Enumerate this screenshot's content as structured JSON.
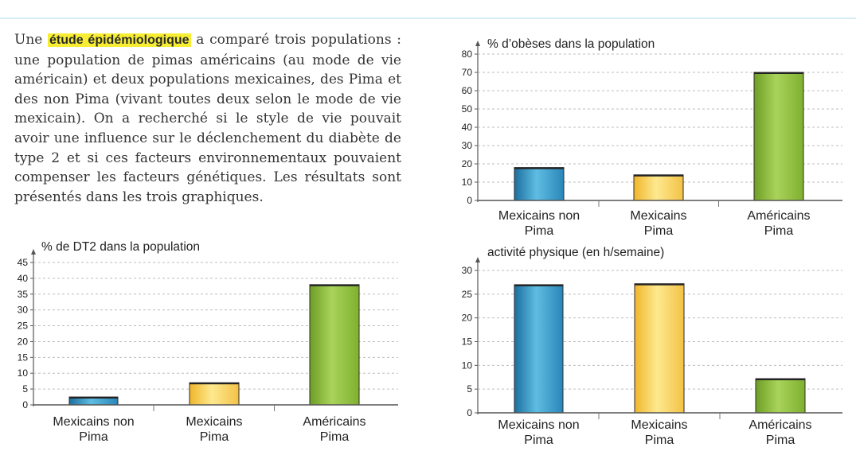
{
  "text": {
    "before": "Une ",
    "highlight": "étude épidémiologique",
    "after": " a comparé trois populations : une population de pimas américains (au mode de vie américain) et deux populations mexicaines, des Pima et des non Pima (vivant toutes deux selon le mode de vie mexicain). On a recherché si le style de vie pouvait avoir une influence sur le déclenchement du diabète de type 2 et si ces facteurs environnementaux pouvaient compenser les facteurs génétiques. Les résultats sont",
    "last_line": "présentés dans les trois graphiques."
  },
  "colors": {
    "blue": "#3399c6",
    "yellow": "#f7cb4a",
    "green": "#8fc23a",
    "grid": "#bdbdbd",
    "axis": "#555555"
  },
  "chart_data": [
    {
      "id": "obesity",
      "type": "bar",
      "title": "% d’obèses dans la population",
      "categories": [
        [
          "Mexicains non",
          "Pima"
        ],
        [
          "Mexicains",
          "Pima"
        ],
        [
          "Américains",
          "Pima"
        ]
      ],
      "values": [
        18,
        14,
        70
      ],
      "ylim": [
        0,
        80
      ],
      "ticks": [
        0,
        10,
        20,
        30,
        40,
        50,
        60,
        70,
        80
      ],
      "grid": true
    },
    {
      "id": "dt2",
      "type": "bar",
      "title": "% de DT2 dans la population",
      "categories": [
        [
          "Mexicains non",
          "Pima"
        ],
        [
          "Mexicains",
          "Pima"
        ],
        [
          "Américains",
          "Pima"
        ]
      ],
      "values": [
        2.5,
        7,
        38
      ],
      "ylim": [
        0,
        45
      ],
      "ticks": [
        0,
        5,
        10,
        15,
        20,
        25,
        30,
        35,
        40,
        45
      ],
      "grid": true
    },
    {
      "id": "activity",
      "type": "bar",
      "title": "activité physique (en h/semaine)",
      "categories": [
        [
          "Mexicains non",
          "Pima"
        ],
        [
          "Mexicains",
          "Pima"
        ],
        [
          "Américains",
          "Pima"
        ]
      ],
      "values": [
        27,
        27.2,
        7.2
      ],
      "ylim": [
        0,
        30
      ],
      "ticks": [
        0,
        5,
        10,
        15,
        20,
        25,
        30
      ],
      "grid": true
    }
  ]
}
